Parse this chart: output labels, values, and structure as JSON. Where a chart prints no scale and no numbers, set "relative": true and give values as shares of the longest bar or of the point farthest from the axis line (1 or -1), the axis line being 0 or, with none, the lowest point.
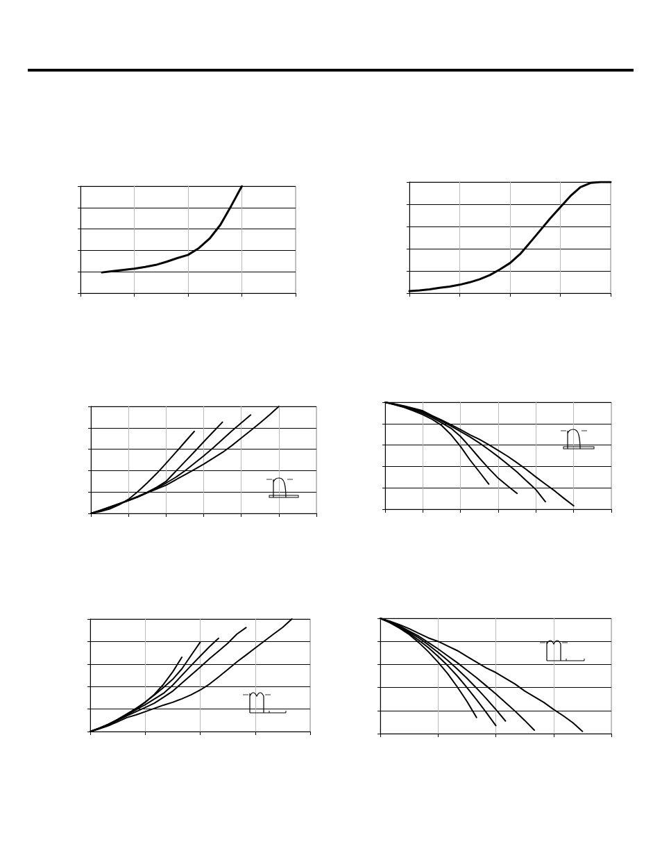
{
  "chart_data": [
    {
      "type": "line",
      "relative": true,
      "grid": true,
      "marker": "none",
      "categories": [
        null,
        null,
        null,
        null,
        null,
        null,
        null,
        null,
        null,
        null,
        null,
        null,
        null,
        null,
        null,
        null,
        null,
        null,
        null,
        null,
        null
      ],
      "series": [
        {
          "color": "#000000",
          "values": [
            null,
            null,
            0.194,
            0.206,
            0.217,
            0.229,
            0.245,
            0.264,
            0.294,
            0.328,
            0.358,
            0.421,
            0.51,
            0.638,
            0.814,
            1,
            null,
            null,
            null,
            null,
            null
          ]
        }
      ]
    },
    {
      "type": "line",
      "relative": true,
      "grid": true,
      "marker": "none",
      "categories": [
        null,
        null,
        null,
        null,
        null,
        null,
        null,
        null,
        null,
        null,
        null,
        null,
        null,
        null,
        null,
        null,
        null,
        null,
        null,
        null,
        null
      ],
      "series": [
        {
          "color": "#000000",
          "values": [
            0.018,
            0.025,
            0.035,
            0.048,
            0.06,
            0.076,
            0.098,
            0.126,
            0.163,
            0.214,
            0.271,
            0.352,
            0.457,
            0.565,
            0.673,
            0.773,
            0.874,
            0.954,
            0.992,
            1,
            1
          ]
        }
      ]
    },
    {
      "type": "line",
      "relative": true,
      "grid": true,
      "marker": "none",
      "categories": [
        null,
        null,
        null,
        null,
        null,
        null,
        null,
        null,
        null,
        null,
        null,
        null,
        null,
        null,
        null,
        null,
        null,
        null,
        null,
        null,
        null,
        null,
        null,
        null,
        null
      ],
      "series": [
        {
          "color": "#000000",
          "values": [
            0,
            0.017,
            0.042,
            0.08,
            0.132,
            0.204,
            0.286,
            0.373,
            0.468,
            0.567,
            0.667,
            0.766,
            null,
            null,
            null,
            null,
            null,
            null,
            null,
            null,
            null,
            null,
            null,
            null,
            null
          ]
        },
        {
          "color": "#000000",
          "values": [
            0,
            0.027,
            0.057,
            0.09,
            0.124,
            0.159,
            0.199,
            0.244,
            0.299,
            0.391,
            0.483,
            0.575,
            0.669,
            0.761,
            0.853,
            null,
            null,
            null,
            null,
            null,
            null,
            null,
            null,
            null,
            null
          ]
        },
        {
          "color": "#000000",
          "values": [
            0,
            0.027,
            0.057,
            0.087,
            0.119,
            0.154,
            0.194,
            0.236,
            0.284,
            0.336,
            0.398,
            0.468,
            0.537,
            0.612,
            0.692,
            0.771,
            0.846,
            0.92,
            null,
            null,
            null,
            null,
            null,
            null,
            null
          ]
        },
        {
          "color": "#000000",
          "values": [
            0,
            0.03,
            0.06,
            0.092,
            0.122,
            0.154,
            0.192,
            0.229,
            0.264,
            0.313,
            0.361,
            0.41,
            0.46,
            0.515,
            0.57,
            0.634,
            0.704,
            0.774,
            0.846,
            0.92,
            1,
            null,
            null,
            null,
            null
          ]
        }
      ]
    },
    {
      "type": "line",
      "relative": true,
      "grid": true,
      "marker": "none",
      "categories": [
        null,
        null,
        null,
        null,
        null,
        null,
        null,
        null,
        null,
        null,
        null,
        null,
        null,
        null,
        null,
        null,
        null,
        null,
        null,
        null,
        null,
        null,
        null,
        null,
        null
      ],
      "series": [
        {
          "color": "#000000",
          "values": [
            1,
            0.977,
            0.952,
            0.92,
            0.884,
            0.84,
            0.783,
            0.696,
            0.587,
            0.461,
            0.349,
            0.235,
            null,
            null,
            null,
            null,
            null,
            null,
            null,
            null,
            null,
            null,
            null,
            null,
            null
          ]
        },
        {
          "color": "#000000",
          "values": [
            1,
            0.979,
            0.957,
            0.929,
            0.897,
            0.856,
            0.808,
            0.756,
            0.68,
            0.582,
            0.479,
            0.381,
            0.29,
            0.217,
            0.148,
            null,
            null,
            null,
            null,
            null,
            null,
            null,
            null,
            null,
            null
          ]
        },
        {
          "color": "#000000",
          "values": [
            1,
            0.982,
            0.961,
            0.936,
            0.909,
            0.868,
            0.824,
            0.776,
            0.726,
            0.676,
            0.619,
            0.557,
            0.491,
            0.42,
            0.347,
            0.265,
            0.183,
            0.071,
            null,
            null,
            null,
            null,
            null,
            null,
            null
          ]
        },
        {
          "color": "#000000",
          "values": [
            1,
            0.984,
            0.966,
            0.943,
            0.92,
            0.874,
            0.833,
            0.79,
            0.744,
            0.696,
            0.653,
            0.603,
            0.55,
            0.495,
            0.434,
            0.37,
            0.301,
            0.235,
            0.171,
            0.1,
            0.032,
            null,
            null,
            null,
            null
          ]
        }
      ]
    },
    {
      "type": "line",
      "relative": true,
      "grid": true,
      "marker": "none",
      "categories": [
        null,
        null,
        null,
        null,
        null,
        null,
        null,
        null,
        null,
        null,
        null,
        null,
        null,
        null,
        null,
        null,
        null,
        null,
        null,
        null,
        null,
        null,
        null,
        null,
        null
      ],
      "series": [
        {
          "color": "#000000",
          "values": [
            0,
            0.03,
            0.065,
            0.105,
            0.15,
            0.2,
            0.26,
            0.33,
            0.42,
            0.53,
            0.66,
            null,
            null,
            null,
            null,
            null,
            null,
            null,
            null,
            null,
            null,
            null,
            null,
            null,
            null
          ]
        },
        {
          "color": "#000000",
          "values": [
            0,
            0.031,
            0.066,
            0.109,
            0.157,
            0.206,
            0.262,
            0.324,
            0.392,
            0.464,
            0.557,
            0.676,
            0.794,
            null,
            null,
            null,
            null,
            null,
            null,
            null,
            null,
            null,
            null,
            null,
            null
          ]
        },
        {
          "color": "#000000",
          "values": [
            0,
            0.029,
            0.062,
            0.103,
            0.148,
            0.194,
            0.239,
            0.289,
            0.34,
            0.412,
            0.499,
            0.586,
            0.67,
            0.753,
            0.829,
            null,
            null,
            null,
            null,
            null,
            null,
            null,
            null,
            null,
            null
          ]
        },
        {
          "color": "#000000",
          "values": [
            0,
            0.027,
            0.058,
            0.099,
            0.14,
            0.177,
            0.214,
            0.252,
            0.305,
            0.359,
            0.431,
            0.501,
            0.573,
            0.647,
            0.715,
            0.784,
            0.866,
            0.924,
            null,
            null,
            null,
            null,
            null,
            null,
            null
          ]
        },
        {
          "color": "#000000",
          "values": [
            0,
            0.025,
            0.052,
            0.087,
            0.124,
            0.148,
            0.177,
            0.206,
            0.235,
            0.26,
            0.291,
            0.326,
            0.369,
            0.421,
            0.485,
            0.551,
            0.619,
            0.68,
            0.742,
            0.804,
            0.866,
            0.926,
            1,
            null,
            null
          ]
        }
      ]
    },
    {
      "type": "line",
      "relative": true,
      "grid": true,
      "marker": "none",
      "categories": [
        null,
        null,
        null,
        null,
        null,
        null,
        null,
        null,
        null,
        null,
        null,
        null,
        null,
        null,
        null,
        null,
        null,
        null,
        null,
        null,
        null,
        null,
        null,
        null,
        null
      ],
      "series": [
        {
          "color": "#000000",
          "values": [
            1,
            0.962,
            0.915,
            0.86,
            0.79,
            0.71,
            0.62,
            0.52,
            0.405,
            0.28,
            0.14,
            null,
            null,
            null,
            null,
            null,
            null,
            null,
            null,
            null,
            null,
            null,
            null,
            null,
            null
          ]
        },
        {
          "color": "#000000",
          "values": [
            1,
            0.965,
            0.925,
            0.87,
            0.81,
            0.745,
            0.67,
            0.59,
            0.5,
            0.4,
            0.295,
            0.185,
            0.07,
            null,
            null,
            null,
            null,
            null,
            null,
            null,
            null,
            null,
            null,
            null,
            null
          ]
        },
        {
          "color": "#000000",
          "values": [
            1,
            0.968,
            0.93,
            0.88,
            0.83,
            0.77,
            0.705,
            0.635,
            0.56,
            0.48,
            0.395,
            0.305,
            0.21,
            0.11,
            null,
            null,
            null,
            null,
            null,
            null,
            null,
            null,
            null,
            null,
            null
          ]
        },
        {
          "color": "#000000",
          "values": [
            1,
            0.97,
            0.935,
            0.89,
            0.845,
            0.79,
            0.735,
            0.675,
            0.615,
            0.55,
            0.485,
            0.415,
            0.345,
            0.27,
            0.195,
            0.115,
            0.03,
            null,
            null,
            null,
            null,
            null,
            null,
            null,
            null
          ]
        },
        {
          "color": "#000000",
          "values": [
            1,
            0.975,
            0.945,
            0.91,
            0.87,
            0.83,
            0.8,
            0.76,
            0.72,
            0.67,
            0.62,
            0.57,
            0.53,
            0.48,
            0.43,
            0.37,
            0.32,
            0.27,
            0.21,
            0.155,
            0.095,
            0.02,
            null,
            null,
            null
          ]
        }
      ]
    }
  ]
}
